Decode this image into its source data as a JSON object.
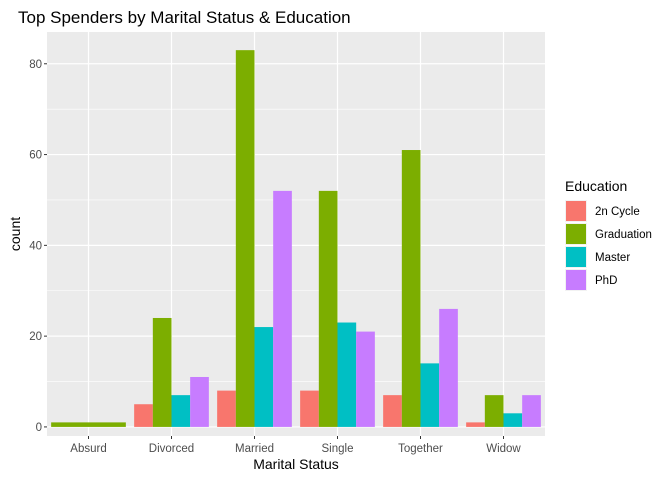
{
  "chart_data": {
    "type": "bar",
    "title": "Top Spenders by Marital Status & Education",
    "xlabel": "Marital Status",
    "ylabel": "count",
    "ylim": [
      -2,
      87
    ],
    "yticks": [
      0,
      20,
      40,
      60,
      80
    ],
    "grid": true,
    "legend_title": "Education",
    "legend_position": "right",
    "categories": [
      "Absurd",
      "Divorced",
      "Married",
      "Single",
      "Together",
      "Widow"
    ],
    "series": [
      {
        "name": "2n Cycle",
        "color": "#F8766D",
        "values": [
          null,
          5,
          8,
          8,
          7,
          1
        ]
      },
      {
        "name": "Graduation",
        "color": "#7CAE00",
        "values": [
          1,
          24,
          83,
          52,
          61,
          7
        ]
      },
      {
        "name": "Master",
        "color": "#00BFC4",
        "values": [
          null,
          7,
          22,
          23,
          14,
          3
        ]
      },
      {
        "name": "PhD",
        "color": "#C77CFF",
        "values": [
          null,
          11,
          52,
          21,
          26,
          7
        ]
      }
    ]
  }
}
